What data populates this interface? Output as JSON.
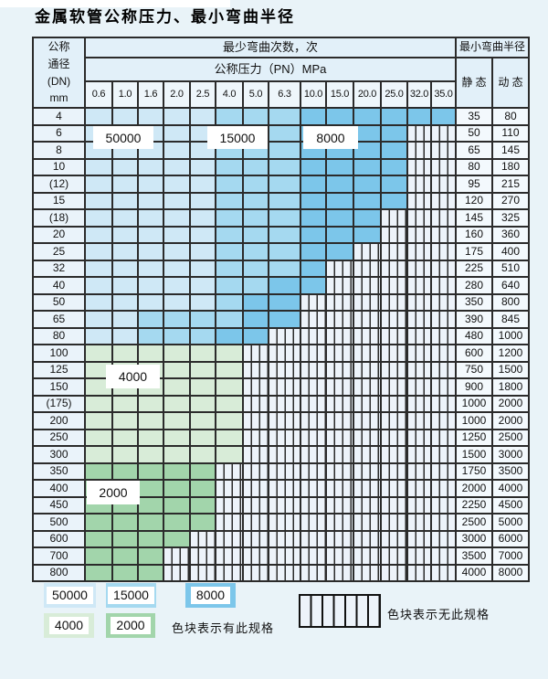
{
  "title": "金属软管公称压力、最小弯曲半径",
  "header": {
    "dn_lines": [
      "公称",
      "通径",
      "(DN)",
      "mm"
    ],
    "min_bend_cycles": "最少弯曲次数，次",
    "nominal_pressure": "公称压力（PN）MPa",
    "min_bend_radius": "最小弯曲半径",
    "static_label": "静 态",
    "dynamic_label": "动 态",
    "pressures": [
      "0.6",
      "1.0",
      "1.6",
      "2.0",
      "2.5",
      "4.0",
      "5.0",
      "6.3",
      "10.0",
      "15.0",
      "20.0",
      "25.0",
      "32.0",
      "35.0"
    ]
  },
  "rows": [
    {
      "dn": "4",
      "cells": [
        "b1",
        "b1",
        "b1",
        "b1",
        "b1",
        "b2",
        "b2",
        "b2",
        "b3",
        "b3",
        "b3",
        "b3",
        "b3",
        "b3"
      ],
      "static": "35",
      "dynamic": "80"
    },
    {
      "dn": "6",
      "cells": [
        "b1",
        "b1",
        "b1",
        "b1",
        "b1",
        "b2",
        "b2",
        "b2",
        "b3",
        "b3",
        "b3",
        "b3",
        "x",
        "x"
      ],
      "static": "50",
      "dynamic": "110"
    },
    {
      "dn": "8",
      "cells": [
        "b1",
        "b1",
        "b1",
        "b1",
        "b1",
        "b2",
        "b2",
        "b2",
        "b3",
        "b3",
        "b3",
        "b3",
        "x",
        "x"
      ],
      "static": "65",
      "dynamic": "145"
    },
    {
      "dn": "10",
      "cells": [
        "b1",
        "b1",
        "b1",
        "b1",
        "b1",
        "b2",
        "b2",
        "b2",
        "b3",
        "b3",
        "b3",
        "b3",
        "x",
        "x"
      ],
      "static": "80",
      "dynamic": "180"
    },
    {
      "dn": "(12)",
      "cells": [
        "b1",
        "b1",
        "b1",
        "b1",
        "b1",
        "b2",
        "b2",
        "b2",
        "b3",
        "b3",
        "b3",
        "b3",
        "x",
        "x"
      ],
      "static": "95",
      "dynamic": "215"
    },
    {
      "dn": "15",
      "cells": [
        "b1",
        "b1",
        "b1",
        "b1",
        "b1",
        "b2",
        "b2",
        "b2",
        "b3",
        "b3",
        "b3",
        "b3",
        "x",
        "x"
      ],
      "static": "120",
      "dynamic": "270"
    },
    {
      "dn": "(18)",
      "cells": [
        "b1",
        "b1",
        "b1",
        "b1",
        "b1",
        "b2",
        "b2",
        "b2",
        "b3",
        "b3",
        "b3",
        "x",
        "x",
        "x"
      ],
      "static": "145",
      "dynamic": "325"
    },
    {
      "dn": "20",
      "cells": [
        "b1",
        "b1",
        "b1",
        "b1",
        "b1",
        "b2",
        "b2",
        "b2",
        "b3",
        "b3",
        "b3",
        "x",
        "x",
        "x"
      ],
      "static": "160",
      "dynamic": "360"
    },
    {
      "dn": "25",
      "cells": [
        "b1",
        "b1",
        "b1",
        "b1",
        "b1",
        "b2",
        "b2",
        "b2",
        "b3",
        "b3",
        "x",
        "x",
        "x",
        "x"
      ],
      "static": "175",
      "dynamic": "400"
    },
    {
      "dn": "32",
      "cells": [
        "b1",
        "b1",
        "b1",
        "b1",
        "b1",
        "b2",
        "b2",
        "b2",
        "b3",
        "x",
        "x",
        "x",
        "x",
        "x"
      ],
      "static": "225",
      "dynamic": "510"
    },
    {
      "dn": "40",
      "cells": [
        "b1",
        "b1",
        "b1",
        "b1",
        "b1",
        "b2",
        "b2",
        "b3",
        "b3",
        "x",
        "x",
        "x",
        "x",
        "x"
      ],
      "static": "280",
      "dynamic": "640"
    },
    {
      "dn": "50",
      "cells": [
        "b1",
        "b1",
        "b1",
        "b1",
        "b1",
        "b2",
        "b3",
        "b3",
        "x",
        "x",
        "x",
        "x",
        "x",
        "x"
      ],
      "static": "350",
      "dynamic": "800"
    },
    {
      "dn": "65",
      "cells": [
        "b1",
        "b1",
        "b2",
        "b2",
        "b2",
        "b2",
        "b3",
        "b3",
        "x",
        "x",
        "x",
        "x",
        "x",
        "x"
      ],
      "static": "390",
      "dynamic": "845"
    },
    {
      "dn": "80",
      "cells": [
        "b1",
        "b1",
        "b2",
        "b2",
        "b2",
        "b3",
        "b3",
        "x",
        "x",
        "x",
        "x",
        "x",
        "x",
        "x"
      ],
      "static": "480",
      "dynamic": "1000"
    },
    {
      "dn": "100",
      "cells": [
        "g1",
        "g1",
        "g1",
        "g1",
        "g1",
        "g1",
        "x",
        "x",
        "x",
        "x",
        "x",
        "x",
        "x",
        "x"
      ],
      "static": "600",
      "dynamic": "1200"
    },
    {
      "dn": "125",
      "cells": [
        "g1",
        "g1",
        "g1",
        "g1",
        "g1",
        "g1",
        "x",
        "x",
        "x",
        "x",
        "x",
        "x",
        "x",
        "x"
      ],
      "static": "750",
      "dynamic": "1500"
    },
    {
      "dn": "150",
      "cells": [
        "g1",
        "g1",
        "g1",
        "g1",
        "g1",
        "g1",
        "x",
        "x",
        "x",
        "x",
        "x",
        "x",
        "x",
        "x"
      ],
      "static": "900",
      "dynamic": "1800"
    },
    {
      "dn": "(175)",
      "cells": [
        "g1",
        "g1",
        "g1",
        "g1",
        "g1",
        "g1",
        "x",
        "x",
        "x",
        "x",
        "x",
        "x",
        "x",
        "x"
      ],
      "static": "1000",
      "dynamic": "2000"
    },
    {
      "dn": "200",
      "cells": [
        "g1",
        "g1",
        "g1",
        "g1",
        "g1",
        "g1",
        "x",
        "x",
        "x",
        "x",
        "x",
        "x",
        "x",
        "x"
      ],
      "static": "1000",
      "dynamic": "2000"
    },
    {
      "dn": "250",
      "cells": [
        "g1",
        "g1",
        "g1",
        "g1",
        "g1",
        "g1",
        "x",
        "x",
        "x",
        "x",
        "x",
        "x",
        "x",
        "x"
      ],
      "static": "1250",
      "dynamic": "2500"
    },
    {
      "dn": "300",
      "cells": [
        "g1",
        "g1",
        "g1",
        "g1",
        "g1",
        "g1",
        "x",
        "x",
        "x",
        "x",
        "x",
        "x",
        "x",
        "x"
      ],
      "static": "1500",
      "dynamic": "3000"
    },
    {
      "dn": "350",
      "cells": [
        "g2",
        "g2",
        "g2",
        "g2",
        "g2",
        "x",
        "x",
        "x",
        "x",
        "x",
        "x",
        "x",
        "x",
        "x"
      ],
      "static": "1750",
      "dynamic": "3500"
    },
    {
      "dn": "400",
      "cells": [
        "g2",
        "g2",
        "g2",
        "g2",
        "g2",
        "x",
        "x",
        "x",
        "x",
        "x",
        "x",
        "x",
        "x",
        "x"
      ],
      "static": "2000",
      "dynamic": "4000"
    },
    {
      "dn": "450",
      "cells": [
        "g2",
        "g2",
        "g2",
        "g2",
        "g2",
        "x",
        "x",
        "x",
        "x",
        "x",
        "x",
        "x",
        "x",
        "x"
      ],
      "static": "2250",
      "dynamic": "4500"
    },
    {
      "dn": "500",
      "cells": [
        "g2",
        "g2",
        "g2",
        "g2",
        "g2",
        "x",
        "x",
        "x",
        "x",
        "x",
        "x",
        "x",
        "x",
        "x"
      ],
      "static": "2500",
      "dynamic": "5000"
    },
    {
      "dn": "600",
      "cells": [
        "g2",
        "g2",
        "g2",
        "g2",
        "x",
        "x",
        "x",
        "x",
        "x",
        "x",
        "x",
        "x",
        "x",
        "x"
      ],
      "static": "3000",
      "dynamic": "6000"
    },
    {
      "dn": "700",
      "cells": [
        "g2",
        "g2",
        "g2",
        "x",
        "x",
        "x",
        "x",
        "x",
        "x",
        "x",
        "x",
        "x",
        "x",
        "x"
      ],
      "static": "3500",
      "dynamic": "7000"
    },
    {
      "dn": "800",
      "cells": [
        "g2",
        "g2",
        "g2",
        "x",
        "x",
        "x",
        "x",
        "x",
        "x",
        "x",
        "x",
        "x",
        "x",
        "x"
      ],
      "static": "4000",
      "dynamic": "8000"
    }
  ],
  "overlays": [
    {
      "label": "50000"
    },
    {
      "label": "15000"
    },
    {
      "label": "8000"
    },
    {
      "label": "4000"
    },
    {
      "label": "2000"
    }
  ],
  "legend": {
    "swatches": [
      "50000",
      "15000",
      "8000",
      "4000",
      "2000"
    ],
    "has_spec_note": "色块表示有此规格",
    "no_spec_note": "色块表示无此规格"
  },
  "colors": {
    "pagebg": "#e9f3f8",
    "line": "#2b2b2b",
    "headbg": "#e2f0f9",
    "numbg": "#eef6fb",
    "labelbg": "#eaf3fa",
    "valbg": "#f3f9fd",
    "b1": "#cfe8f6",
    "b2": "#a5d9f0",
    "b3": "#7cc6ea",
    "g1": "#d8ecd8",
    "g2": "#a2d5ab",
    "hatchbg": "#edf3fa"
  }
}
